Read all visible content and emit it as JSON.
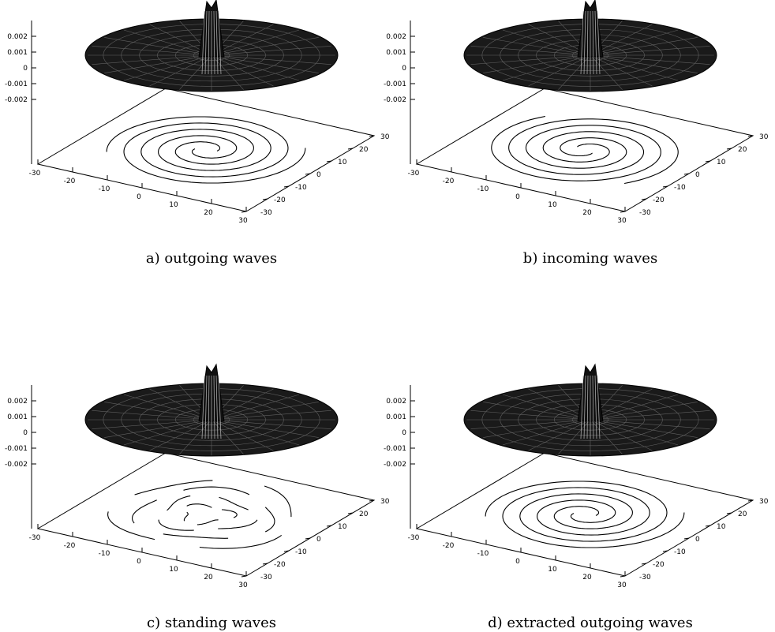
{
  "chart_data": [
    {
      "type": "surface",
      "caption": "a) outgoing waves",
      "zticks": [
        "0.002",
        "0.001",
        "0",
        "-0.001",
        "-0.002"
      ],
      "xticks": [
        "-30",
        "-20",
        "-10",
        "0",
        "10",
        "20",
        "30"
      ],
      "yticks": [
        "-30",
        "-20",
        "-10",
        "0",
        "10",
        "20",
        "30"
      ],
      "xlim": [
        -30,
        30
      ],
      "ylim": [
        -30,
        30
      ],
      "zlim": [
        -0.002,
        0.002
      ],
      "contour": "spiral-out"
    },
    {
      "type": "surface",
      "caption": "b) incoming waves",
      "zticks": [
        "0.002",
        "0.001",
        "0",
        "-0.001",
        "-0.002"
      ],
      "xticks": [
        "-30",
        "-20",
        "-10",
        "0",
        "10",
        "20",
        "30"
      ],
      "yticks": [
        "-30",
        "-20",
        "-10",
        "0",
        "10",
        "20",
        "30"
      ],
      "xlim": [
        -30,
        30
      ],
      "ylim": [
        -30,
        30
      ],
      "zlim": [
        -0.002,
        0.002
      ],
      "contour": "spiral-in"
    },
    {
      "type": "surface",
      "caption": "c) standing waves",
      "zticks": [
        "0.002",
        "0.001",
        "0",
        "-0.001",
        "-0.002"
      ],
      "xticks": [
        "-30",
        "-20",
        "-10",
        "0",
        "10",
        "20",
        "30"
      ],
      "yticks": [
        "-30",
        "-20",
        "-10",
        "0",
        "10",
        "20",
        "30"
      ],
      "xlim": [
        -30,
        30
      ],
      "ylim": [
        -30,
        30
      ],
      "zlim": [
        -0.002,
        0.002
      ],
      "contour": "standing"
    },
    {
      "type": "surface",
      "caption": "d) extracted outgoing waves",
      "zticks": [
        "0.002",
        "0.001",
        "0",
        "-0.001",
        "-0.002"
      ],
      "xticks": [
        "-30",
        "-20",
        "-10",
        "0",
        "10",
        "20",
        "30"
      ],
      "yticks": [
        "-30",
        "-20",
        "-10",
        "0",
        "10",
        "20",
        "30"
      ],
      "xlim": [
        -30,
        30
      ],
      "ylim": [
        -30,
        30
      ],
      "zlim": [
        -0.002,
        0.002
      ],
      "contour": "spiral-out"
    }
  ]
}
